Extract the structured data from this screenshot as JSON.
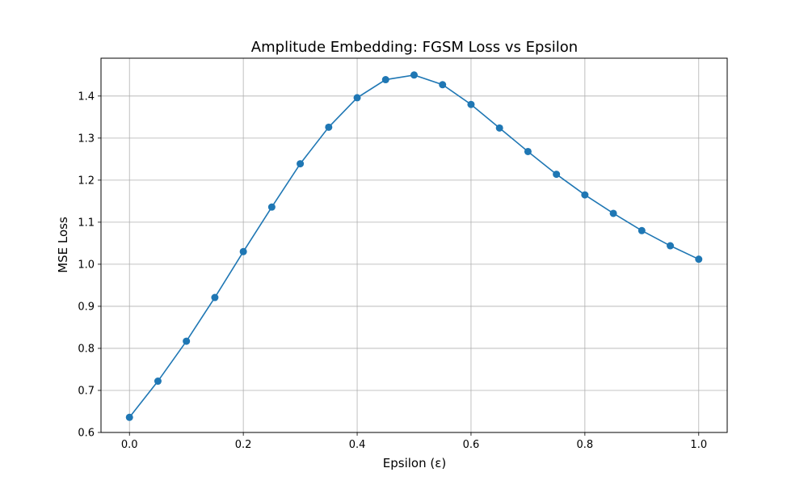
{
  "chart_data": {
    "type": "line",
    "title": "Amplitude Embedding: FGSM Loss vs Epsilon",
    "xlabel": "Epsilon (ε)",
    "ylabel": "MSE Loss",
    "xlim": [
      -0.05,
      1.05
    ],
    "ylim": [
      0.6,
      1.49
    ],
    "grid": true,
    "x_ticks": [
      "0.0",
      "0.2",
      "0.4",
      "0.6",
      "0.8",
      "1.0"
    ],
    "x_tick_values": [
      0.0,
      0.2,
      0.4,
      0.6,
      0.8,
      1.0
    ],
    "y_ticks": [
      "0.6",
      "0.7",
      "0.8",
      "0.9",
      "1.0",
      "1.1",
      "1.2",
      "1.3",
      "1.4"
    ],
    "y_tick_values": [
      0.6,
      0.7,
      0.8,
      0.9,
      1.0,
      1.1,
      1.2,
      1.3,
      1.4
    ],
    "series": [
      {
        "color": "#1f77b4",
        "marker": "circle",
        "x": [
          0.0,
          0.05,
          0.1,
          0.15,
          0.2,
          0.25,
          0.3,
          0.35,
          0.4,
          0.45,
          0.5,
          0.55,
          0.6,
          0.65,
          0.7,
          0.75,
          0.8,
          0.85,
          0.9,
          0.95,
          1.0
        ],
        "y": [
          0.636,
          0.722,
          0.817,
          0.921,
          1.03,
          1.136,
          1.239,
          1.326,
          1.396,
          1.439,
          1.45,
          1.427,
          1.38,
          1.324,
          1.268,
          1.214,
          1.165,
          1.121,
          1.08,
          1.044,
          1.012
        ]
      }
    ]
  }
}
